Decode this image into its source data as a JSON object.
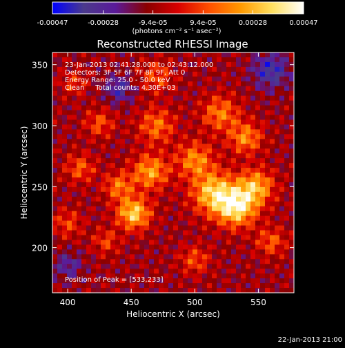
{
  "chart_data": {
    "type": "heatmap",
    "title": "Reconstructed RHESSI Image",
    "xlabel": "Heliocentric X (arcsec)",
    "ylabel": "Heliocentric Y (arcsec)",
    "xlim": [
      388,
      578
    ],
    "ylim": [
      163,
      360
    ],
    "xticks": [
      400,
      450,
      500,
      550
    ],
    "yticks": [
      200,
      250,
      300,
      350
    ],
    "colorbar": {
      "min": -0.00047,
      "max": 0.00047,
      "tick_values": [
        -0.00047,
        -0.00028,
        -9.4e-05,
        9.4e-05,
        0.00028,
        0.00047
      ],
      "tick_labels": [
        "-0.00047",
        "-0.00028",
        "-9.4e-05",
        "9.4e-05",
        "0.00028",
        "0.00047"
      ],
      "units": "(photons cm⁻² s⁻¹ asec⁻²)",
      "colormap": [
        "#0000ff",
        "#4b3a8c",
        "#5a1a9a",
        "#8a0000",
        "#d80000",
        "#ff5000",
        "#ff9a00",
        "#ffe060",
        "#ffffff"
      ]
    },
    "annotations": [
      "23-Jan-2013 02:41:28.000 to 02:43:12.000",
      "Detectors: 3F 5F 6F 7F 8F 9F, Att 0",
      "Energy Range: 25.0 - 50.0 keV",
      "Clean     Total counts: 4.30E+03"
    ],
    "peak_label": "Position of Peak = [533,233]",
    "peak": {
      "x": 533,
      "y": 233
    },
    "sources": [
      {
        "x": 452,
        "y": 228,
        "sigma": 9,
        "amp": 0.00044
      },
      {
        "x": 465,
        "y": 262,
        "sigma": 10,
        "amp": 0.00034
      },
      {
        "x": 440,
        "y": 250,
        "sigma": 8,
        "amp": 0.00026
      },
      {
        "x": 533,
        "y": 233,
        "sigma": 11,
        "amp": 0.00047
      },
      {
        "x": 515,
        "y": 245,
        "sigma": 12,
        "amp": 0.00042
      },
      {
        "x": 548,
        "y": 250,
        "sigma": 10,
        "amp": 0.00036
      },
      {
        "x": 500,
        "y": 272,
        "sigma": 10,
        "amp": 0.0003
      },
      {
        "x": 540,
        "y": 290,
        "sigma": 9,
        "amp": 0.0003
      },
      {
        "x": 520,
        "y": 310,
        "sigma": 10,
        "amp": 0.00028
      },
      {
        "x": 470,
        "y": 300,
        "sigma": 10,
        "amp": 0.00026
      },
      {
        "x": 425,
        "y": 302,
        "sigma": 8,
        "amp": 0.0002
      },
      {
        "x": 410,
        "y": 265,
        "sigma": 8,
        "amp": 0.00022
      },
      {
        "x": 400,
        "y": 220,
        "sigma": 8,
        "amp": 0.00018
      },
      {
        "x": 430,
        "y": 205,
        "sigma": 7,
        "amp": 0.00018
      },
      {
        "x": 405,
        "y": 335,
        "sigma": 7,
        "amp": 0.00016
      },
      {
        "x": 470,
        "y": 340,
        "sigma": 9,
        "amp": 0.0002
      },
      {
        "x": 500,
        "y": 190,
        "sigma": 8,
        "amp": 0.0002
      },
      {
        "x": 560,
        "y": 205,
        "sigma": 8,
        "amp": 0.00022
      },
      {
        "x": 440,
        "y": 330,
        "sigma": 8,
        "amp": -0.00022
      },
      {
        "x": 560,
        "y": 345,
        "sigma": 10,
        "amp": -0.00028
      },
      {
        "x": 400,
        "y": 185,
        "sigma": 8,
        "amp": -0.00018
      }
    ]
  },
  "footer": {
    "date": "22-Jan-2013 21:00"
  }
}
